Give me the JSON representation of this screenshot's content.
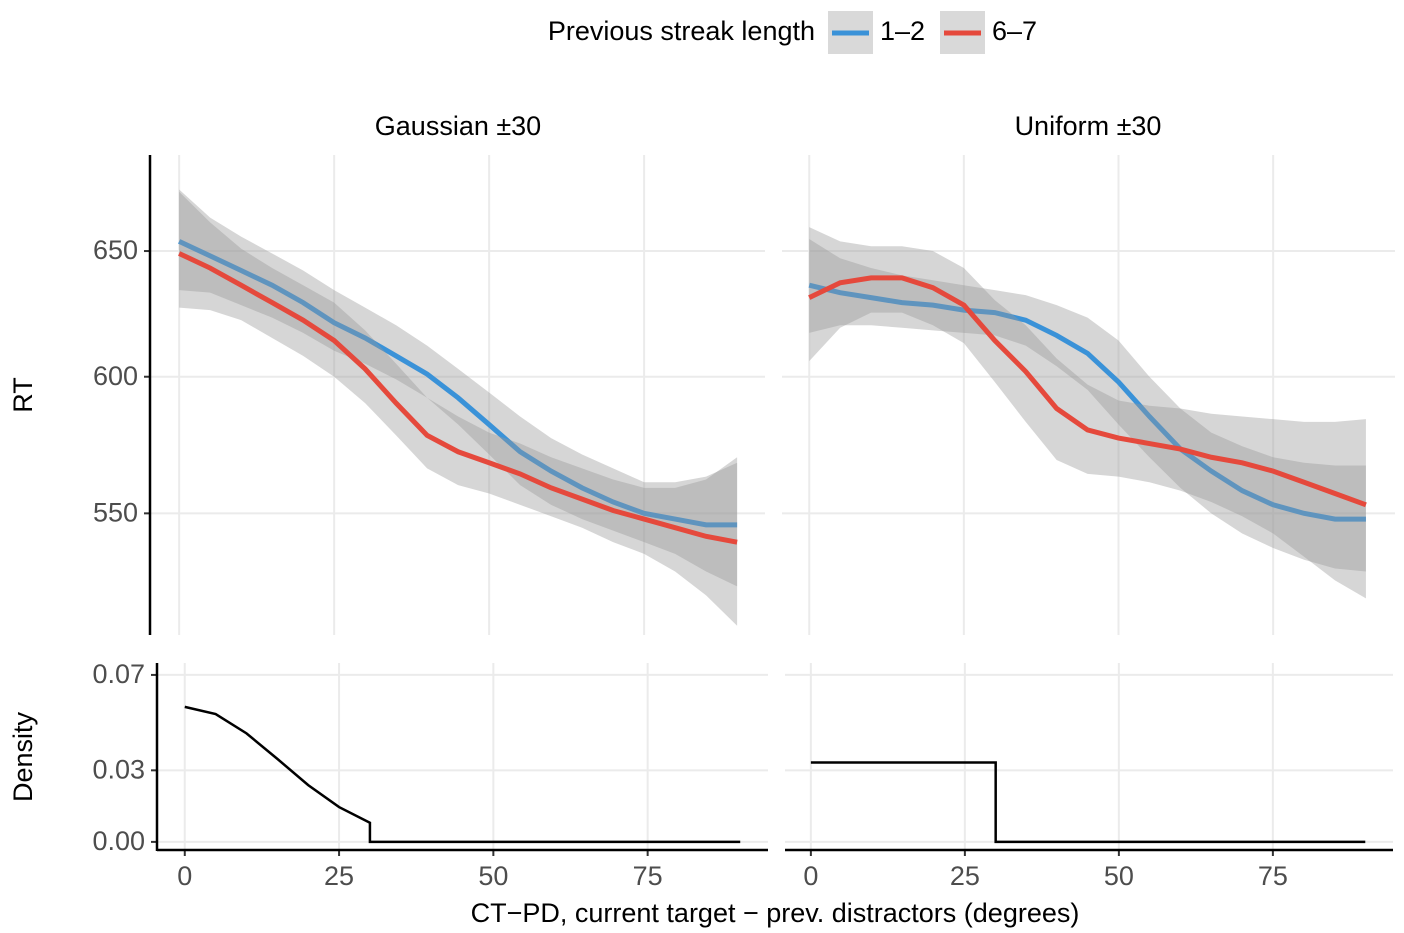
{
  "chart_data": [
    {
      "type": "line",
      "title": "Gaussian ±30",
      "ylabel": "RT",
      "legend_title": "Previous streak length",
      "legend": "top",
      "grid": true,
      "log_y": true,
      "band_color": "#999999",
      "x": [
        0,
        5,
        10,
        15,
        20,
        25,
        30,
        35,
        40,
        45,
        50,
        55,
        60,
        65,
        70,
        75,
        80,
        85,
        90
      ],
      "xlim": [
        -4.7,
        94.5
      ],
      "xticks": [
        0,
        25,
        50,
        75
      ],
      "ylim": [
        509,
        691
      ],
      "yticks": [
        550,
        600,
        650
      ],
      "series": [
        {
          "name": "1–2",
          "color": "#3a92d8",
          "values": [
            654,
            648,
            642,
            636,
            629,
            621,
            615,
            608,
            601,
            592,
            582,
            572,
            565,
            559,
            554,
            550,
            548,
            546,
            546
          ],
          "lower": [
            634,
            633,
            628,
            623,
            617,
            610,
            605,
            599,
            592,
            582,
            571,
            560,
            553,
            548,
            544,
            540,
            536,
            530,
            525
          ],
          "upper": [
            676,
            664,
            656,
            649,
            642,
            634,
            627,
            620,
            612,
            603,
            594,
            585,
            577,
            571,
            566,
            561,
            561,
            563,
            568
          ]
        },
        {
          "name": "6–7",
          "color": "#e5493c",
          "values": [
            649,
            643,
            636,
            629,
            622,
            614,
            603,
            590,
            578,
            572,
            568,
            564,
            559,
            555,
            551,
            548,
            545,
            542,
            540
          ],
          "lower": [
            627,
            626,
            622,
            615,
            608,
            600,
            590,
            578,
            566,
            560,
            557,
            553,
            549,
            545,
            540,
            536,
            530,
            522,
            512
          ],
          "upper": [
            675,
            662,
            651,
            643,
            636,
            629,
            618,
            605,
            592,
            585,
            579,
            575,
            570,
            566,
            562,
            559,
            559,
            562,
            570
          ]
        }
      ]
    },
    {
      "type": "line",
      "title": "Uniform ±30",
      "grid": true,
      "log_y": true,
      "band_color": "#999999",
      "x": [
        0,
        5,
        10,
        15,
        20,
        25,
        30,
        35,
        40,
        45,
        50,
        55,
        60,
        65,
        70,
        75,
        80,
        85,
        90
      ],
      "xlim": [
        -4.4,
        94.7
      ],
      "xticks": [
        0,
        25,
        50,
        75
      ],
      "ylim": [
        509,
        691
      ],
      "yticks": [
        550,
        600,
        650
      ],
      "series": [
        {
          "name": "1–2",
          "color": "#3a92d8",
          "values": [
            636,
            633,
            631,
            629,
            628,
            626,
            625,
            622,
            616,
            609,
            598,
            585,
            573,
            565,
            558,
            553,
            550,
            548,
            548
          ],
          "lower": [
            617,
            620,
            620,
            619,
            618,
            617,
            616,
            612,
            604,
            595,
            582,
            570,
            559,
            550,
            543,
            538,
            534,
            531,
            530
          ],
          "upper": [
            655,
            647,
            643,
            640,
            638,
            636,
            634,
            632,
            628,
            623,
            614,
            600,
            588,
            579,
            574,
            570,
            568,
            567,
            567
          ]
        },
        {
          "name": "6–7",
          "color": "#e5493c",
          "values": [
            631,
            637,
            639,
            639,
            635,
            628,
            614,
            602,
            588,
            580,
            577,
            575,
            573,
            570,
            568,
            565,
            561,
            557,
            553
          ],
          "lower": [
            606,
            619,
            625,
            625,
            620,
            613,
            598,
            583,
            569,
            564,
            563,
            561,
            558,
            554,
            549,
            543,
            535,
            527,
            521
          ],
          "upper": [
            660,
            654,
            652,
            652,
            650,
            643,
            630,
            620,
            607,
            597,
            591,
            589,
            588,
            586,
            585,
            584,
            583,
            583,
            584
          ]
        }
      ]
    },
    {
      "type": "line",
      "ylabel": "Density",
      "xlabel": "CT−PD, current target − prev. distractors (degrees)",
      "grid": true,
      "color": "#000000",
      "x": [
        0,
        5,
        10,
        15,
        20,
        25,
        30,
        30,
        90
      ],
      "values": [
        0.0566,
        0.0536,
        0.0455,
        0.0348,
        0.0238,
        0.0146,
        0.008,
        0,
        0
      ],
      "xlim": [
        -4.5,
        94.5
      ],
      "xticks": [
        0,
        25,
        50,
        75
      ],
      "ylim": [
        -0.0034,
        0.075
      ],
      "yticks": [
        {
          "value": 0,
          "label": "0.00"
        },
        {
          "value": 0.03,
          "label": "0.03"
        },
        {
          "value": 0.07,
          "label": "0.07"
        }
      ]
    },
    {
      "type": "line",
      "grid": true,
      "color": "#000000",
      "x": [
        0,
        30,
        30,
        90
      ],
      "values": [
        0.0333,
        0.0333,
        0,
        0
      ],
      "xlim": [
        -4.2,
        94.5
      ],
      "xticks": [
        0,
        25,
        50,
        75
      ],
      "ylim": [
        -0.0034,
        0.075
      ],
      "yticks": [
        {
          "value": 0,
          "label": "0.00"
        },
        {
          "value": 0.03,
          "label": "0.03"
        },
        {
          "value": 0.07,
          "label": "0.07"
        }
      ]
    }
  ]
}
